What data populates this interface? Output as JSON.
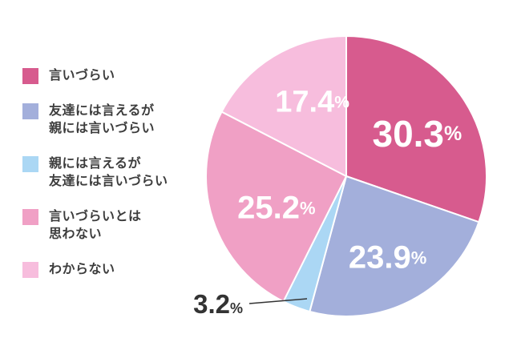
{
  "chart_data": {
    "type": "pie",
    "title": "",
    "start_angle_deg": 0,
    "clockwise": true,
    "unit": "%",
    "segments": [
      {
        "label": "言いづらい",
        "value": 30.3,
        "color": "#d75b8e",
        "label_color": "#ffffff"
      },
      {
        "label": "友達には言えるが親には言いづらい",
        "value": 23.9,
        "color": "#a3afdb",
        "label_color": "#ffffff"
      },
      {
        "label": "親には言えるが友達には言いづらい",
        "value": 3.2,
        "color": "#abd7f4",
        "label_color": "#333333",
        "label_outside": true
      },
      {
        "label": "言いづらいとは思わない",
        "value": 25.2,
        "color": "#f0a0c5",
        "label_color": "#ffffff"
      },
      {
        "label": "わからない",
        "value": 17.4,
        "color": "#f7bddd",
        "label_color": "#ffffff"
      }
    ],
    "legend_position": "left"
  },
  "legend": {
    "items": [
      {
        "lines": [
          "言いづらい"
        ],
        "color": "#d75b8e"
      },
      {
        "lines": [
          "友達には言えるが",
          "親には言いづらい"
        ],
        "color": "#a3afdb"
      },
      {
        "lines": [
          "親には言えるが",
          "友達には言いづらい"
        ],
        "color": "#abd7f4"
      },
      {
        "lines": [
          "言いづらいとは",
          "思わない"
        ],
        "color": "#f0a0c5"
      },
      {
        "lines": [
          "わからない"
        ],
        "color": "#f7bddd"
      }
    ]
  }
}
